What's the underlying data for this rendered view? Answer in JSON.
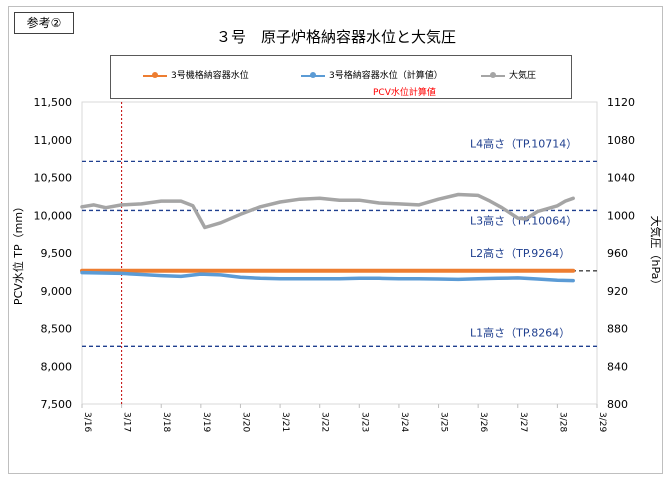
{
  "badge": "参考②",
  "chart_data": {
    "type": "line",
    "title": "３号　原子炉格納容器水位と大気圧",
    "legend_note": "PCV水位計算値",
    "ylabel_left": "PCV水位 TP（mm）",
    "ylabel_right": "大気圧（hPa）",
    "ylim_left": [
      7500,
      11500
    ],
    "ylim_right": [
      800,
      1120
    ],
    "yticks_left": [
      "7,500",
      "8,000",
      "8,500",
      "9,000",
      "9,500",
      "10,000",
      "10,500",
      "11,000",
      "11,500"
    ],
    "yticks_right": [
      "800",
      "840",
      "880",
      "920",
      "960",
      "1000",
      "1040",
      "1080",
      "1120"
    ],
    "x_categories": [
      "3/16",
      "3/17",
      "3/18",
      "3/19",
      "3/20",
      "3/21",
      "3/22",
      "3/23",
      "3/24",
      "3/25",
      "3/26",
      "3/27",
      "3/28",
      "3/29"
    ],
    "legend_position": "top",
    "grid": false,
    "reference_lines": [
      {
        "label": "L4高さ（TP.10714）",
        "value": 10714,
        "color": "#1f3f8f"
      },
      {
        "label": "L3高さ（TP.10064）",
        "value": 10064,
        "color": "#1f3f8f"
      },
      {
        "label": "L2高さ（TP.9264）",
        "value": 9264,
        "color": "#404040"
      },
      {
        "label": "L1高さ（TP.8264）",
        "value": 8264,
        "color": "#1f3f8f"
      }
    ],
    "vline": {
      "x": 1.0,
      "color": "#c00000"
    },
    "series": [
      {
        "name": "3号機格納容器水位",
        "axis": "left",
        "color": "#ed7d31",
        "x": [
          0,
          1,
          2,
          3,
          4,
          5,
          6,
          7,
          8,
          9,
          10,
          11,
          12.4
        ],
        "y": [
          9264,
          9264,
          9264,
          9264,
          9264,
          9264,
          9264,
          9264,
          9264,
          9264,
          9264,
          9264,
          9264
        ]
      },
      {
        "name": "3号格納容器水位（計算値）",
        "axis": "left",
        "color": "#5b9bd5",
        "x": [
          0,
          0.5,
          1,
          1.5,
          2,
          2.5,
          3,
          3.5,
          4,
          4.5,
          5,
          5.5,
          6,
          6.5,
          7,
          7.5,
          8,
          8.5,
          9,
          9.5,
          10,
          10.5,
          11,
          11.5,
          12,
          12.4
        ],
        "y": [
          9240,
          9235,
          9230,
          9215,
          9200,
          9190,
          9220,
          9210,
          9180,
          9165,
          9160,
          9160,
          9160,
          9160,
          9165,
          9165,
          9160,
          9160,
          9155,
          9150,
          9160,
          9165,
          9170,
          9155,
          9140,
          9135
        ]
      },
      {
        "name": "大気圧",
        "axis": "right",
        "color": "#a5a5a5",
        "x": [
          0,
          0.3,
          0.6,
          1,
          1.5,
          2,
          2.5,
          2.8,
          3.1,
          3.5,
          4,
          4.5,
          5,
          5.5,
          6,
          6.5,
          7,
          7.5,
          8,
          8.5,
          9,
          9.5,
          10,
          10.3,
          10.6,
          11,
          11.2,
          11.5,
          12,
          12.2,
          12.4
        ],
        "y": [
          1009,
          1011,
          1008,
          1011,
          1012,
          1015,
          1015,
          1010,
          987,
          992,
          1001,
          1009,
          1014,
          1017,
          1018,
          1016,
          1016,
          1013,
          1012,
          1011,
          1017,
          1022,
          1021,
          1015,
          1008,
          997,
          996,
          1004,
          1010,
          1015,
          1018
        ]
      }
    ]
  }
}
